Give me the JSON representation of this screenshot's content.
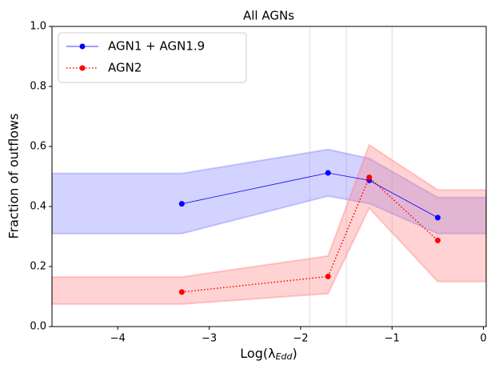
{
  "chart_data": {
    "type": "line",
    "title": "All AGNs",
    "xlabel": {
      "base": "Log(λ",
      "sub": "Edd",
      "end": ")"
    },
    "ylabel": "Fraction of outflows",
    "xlim": [
      -4.72,
      0.03
    ],
    "ylim": [
      0,
      1
    ],
    "xticks": [
      {
        "value": -4,
        "label": "−4"
      },
      {
        "value": -3,
        "label": "−3"
      },
      {
        "value": -2,
        "label": "−2"
      },
      {
        "value": -1,
        "label": "−1"
      },
      {
        "value": 0,
        "label": "0"
      }
    ],
    "yticks": [
      {
        "value": 0,
        "label": "0.0"
      },
      0.2,
      0.4,
      0.6,
      0.8,
      {
        "value": 1,
        "label": "1.0"
      }
    ],
    "vlines": [
      -1.9,
      -1.5,
      -1.0
    ],
    "legend": "upper left",
    "series": [
      {
        "name": "AGN1 + AGN1.9",
        "color": "#0000ff",
        "style": "solid",
        "x": [
          -3.3,
          -1.7,
          -1.25,
          -0.5
        ],
        "values": [
          0.409,
          0.512,
          0.487,
          0.363
        ],
        "band": {
          "color": "#8080ff",
          "x": [
            -4.72,
            -3.3,
            -1.7,
            -1.25,
            -0.5,
            0.03
          ],
          "upper": [
            0.51,
            0.51,
            0.59,
            0.56,
            0.43,
            0.43
          ],
          "lower": [
            0.31,
            0.31,
            0.435,
            0.41,
            0.31,
            0.31
          ]
        }
      },
      {
        "name": "AGN2",
        "color": "#ff0000",
        "style": "dotted",
        "x": [
          -3.3,
          -1.7,
          -1.25,
          -0.5
        ],
        "values": [
          0.115,
          0.167,
          0.497,
          0.287
        ],
        "band": {
          "color": "#ff8080",
          "x": [
            -4.72,
            -3.3,
            -1.7,
            -1.25,
            -0.5,
            0.03
          ],
          "upper": [
            0.165,
            0.165,
            0.235,
            0.605,
            0.455,
            0.455
          ],
          "lower": [
            0.075,
            0.075,
            0.11,
            0.395,
            0.15,
            0.15
          ]
        }
      }
    ]
  }
}
